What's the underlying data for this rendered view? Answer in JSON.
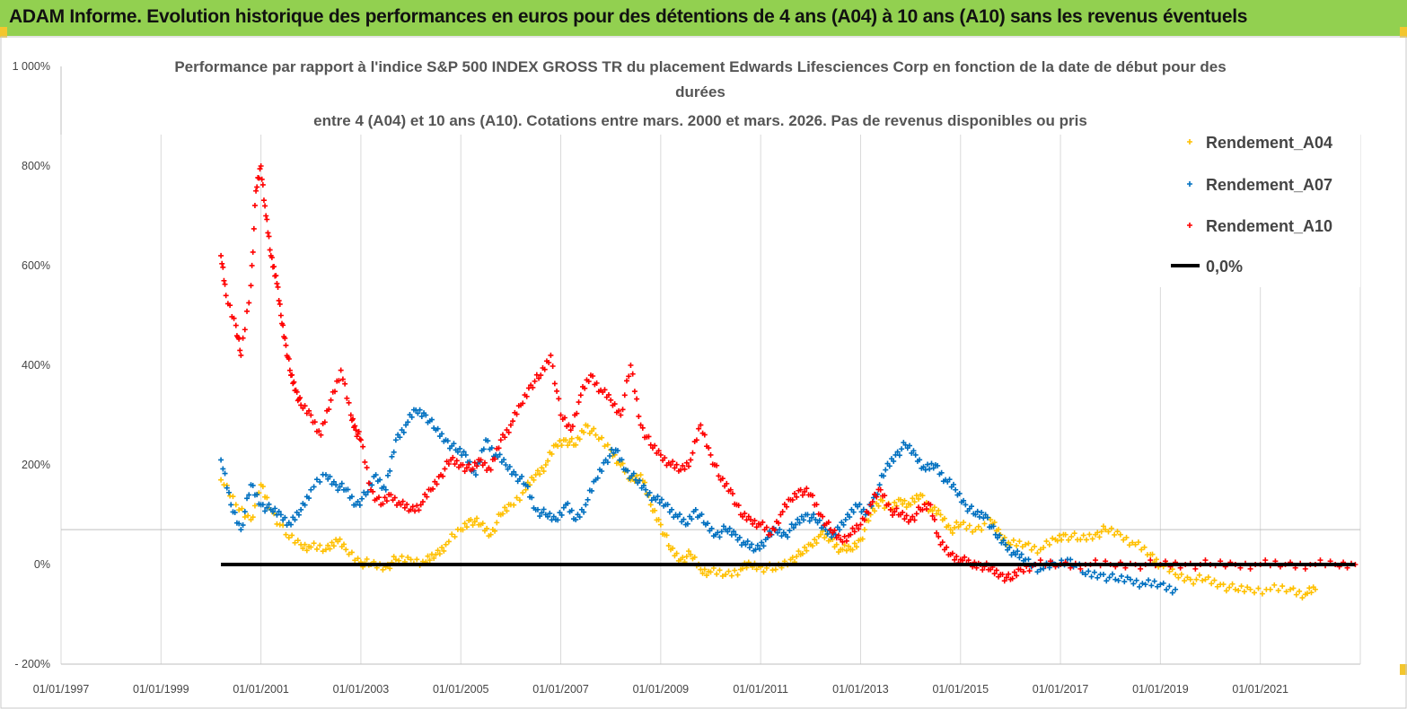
{
  "header": {
    "title": "ADAM Informe. Evolution historique des performances en euros pour des détentions de 4 ans (A04) à 10 ans (A10) sans les revenus éventuels"
  },
  "colors": {
    "banner": "#92d050",
    "A04": "#ffc000",
    "A07": "#0070c0",
    "A10": "#ff0000",
    "zero": "#000000"
  },
  "chart_data": {
    "type": "scatter",
    "title_lines": [
      "Performance par rapport à l'indice S&P 500 INDEX GROSS TR  du placement Edwards Lifesciences  Corp en fonction de la date de début pour des",
      "durées",
      "entre 4 (A04) et 10 ans (A10).  Cotations entre mars. 2000 et mars. 2026. Pas de revenus disponibles ou pris"
    ],
    "xlabel": "",
    "ylabel": "",
    "x_range": [
      1997.0,
      2023.0
    ],
    "ylim": [
      -200,
      1000
    ],
    "y_ticks": [
      -200,
      0,
      200,
      400,
      600,
      800,
      1000
    ],
    "y_tick_labels": [
      "- 200%",
      "0%",
      "200%",
      "400%",
      "600%",
      "800%",
      "1 000%"
    ],
    "x_ticks": [
      1997,
      1999,
      2001,
      2003,
      2005,
      2007,
      2009,
      2011,
      2013,
      2015,
      2017,
      2019,
      2021
    ],
    "x_tick_labels": [
      "01/01/1997",
      "01/01/1999",
      "01/01/2001",
      "01/01/2003",
      "01/01/2005",
      "01/01/2007",
      "01/01/2009",
      "01/01/2011",
      "01/01/2013",
      "01/01/2015",
      "01/01/2017",
      "01/01/2019",
      "01/01/2021"
    ],
    "reference_line_y": 70,
    "series": [
      {
        "name": "Rendement_A04",
        "key": "A04",
        "points": [
          [
            2000.2,
            170
          ],
          [
            2000.5,
            120
          ],
          [
            2000.8,
            90
          ],
          [
            2001.0,
            160
          ],
          [
            2001.2,
            110
          ],
          [
            2001.5,
            60
          ],
          [
            2001.8,
            40
          ],
          [
            2002.0,
            35
          ],
          [
            2002.3,
            30
          ],
          [
            2002.5,
            50
          ],
          [
            2002.7,
            30
          ],
          [
            2003.0,
            5
          ],
          [
            2003.2,
            0
          ],
          [
            2003.5,
            -5
          ],
          [
            2003.7,
            10
          ],
          [
            2004.0,
            10
          ],
          [
            2004.3,
            5
          ],
          [
            2004.5,
            20
          ],
          [
            2004.7,
            40
          ],
          [
            2005.0,
            70
          ],
          [
            2005.2,
            90
          ],
          [
            2005.4,
            80
          ],
          [
            2005.6,
            60
          ],
          [
            2005.8,
            100
          ],
          [
            2006.0,
            120
          ],
          [
            2006.3,
            150
          ],
          [
            2006.5,
            180
          ],
          [
            2006.7,
            200
          ],
          [
            2006.9,
            240
          ],
          [
            2007.1,
            250
          ],
          [
            2007.3,
            240
          ],
          [
            2007.5,
            280
          ],
          [
            2007.7,
            260
          ],
          [
            2008.0,
            230
          ],
          [
            2008.2,
            200
          ],
          [
            2008.4,
            170
          ],
          [
            2008.6,
            180
          ],
          [
            2008.8,
            120
          ],
          [
            2009.0,
            80
          ],
          [
            2009.2,
            30
          ],
          [
            2009.4,
            10
          ],
          [
            2009.6,
            20
          ],
          [
            2009.8,
            -10
          ],
          [
            2010.0,
            -15
          ],
          [
            2010.3,
            -20
          ],
          [
            2010.6,
            -10
          ],
          [
            2010.8,
            0
          ],
          [
            2011.0,
            -5
          ],
          [
            2011.3,
            -10
          ],
          [
            2011.6,
            10
          ],
          [
            2011.8,
            20
          ],
          [
            2012.0,
            40
          ],
          [
            2012.2,
            60
          ],
          [
            2012.4,
            50
          ],
          [
            2012.6,
            30
          ],
          [
            2012.8,
            30
          ],
          [
            2013.0,
            50
          ],
          [
            2013.2,
            100
          ],
          [
            2013.4,
            130
          ],
          [
            2013.6,
            110
          ],
          [
            2013.8,
            130
          ],
          [
            2014.0,
            120
          ],
          [
            2014.2,
            140
          ],
          [
            2014.4,
            110
          ],
          [
            2014.6,
            100
          ],
          [
            2014.8,
            70
          ],
          [
            2015.0,
            80
          ],
          [
            2015.3,
            70
          ],
          [
            2015.6,
            90
          ],
          [
            2015.8,
            60
          ],
          [
            2016.0,
            40
          ],
          [
            2016.3,
            40
          ],
          [
            2016.6,
            30
          ],
          [
            2016.9,
            50
          ],
          [
            2017.1,
            60
          ],
          [
            2017.4,
            50
          ],
          [
            2017.7,
            60
          ],
          [
            2017.9,
            70
          ],
          [
            2018.2,
            60
          ],
          [
            2018.5,
            40
          ],
          [
            2018.8,
            20
          ],
          [
            2019.0,
            0
          ],
          [
            2019.3,
            -20
          ],
          [
            2019.6,
            -30
          ],
          [
            2019.9,
            -30
          ],
          [
            2020.2,
            -40
          ],
          [
            2020.5,
            -50
          ],
          [
            2020.8,
            -50
          ],
          [
            2021.2,
            -50
          ],
          [
            2021.6,
            -50
          ],
          [
            2021.9,
            -60
          ],
          [
            2022.1,
            -50
          ]
        ]
      },
      {
        "name": "Rendement_A07",
        "key": "A07",
        "points": [
          [
            2000.2,
            210
          ],
          [
            2000.4,
            120
          ],
          [
            2000.6,
            70
          ],
          [
            2000.8,
            160
          ],
          [
            2001.0,
            120
          ],
          [
            2001.2,
            110
          ],
          [
            2001.4,
            100
          ],
          [
            2001.6,
            80
          ],
          [
            2001.8,
            110
          ],
          [
            2002.0,
            150
          ],
          [
            2002.3,
            180
          ],
          [
            2002.5,
            160
          ],
          [
            2002.7,
            150
          ],
          [
            2002.9,
            120
          ],
          [
            2003.1,
            140
          ],
          [
            2003.3,
            180
          ],
          [
            2003.5,
            150
          ],
          [
            2003.7,
            250
          ],
          [
            2003.9,
            280
          ],
          [
            2004.1,
            310
          ],
          [
            2004.3,
            300
          ],
          [
            2004.5,
            270
          ],
          [
            2004.7,
            250
          ],
          [
            2004.9,
            230
          ],
          [
            2005.1,
            220
          ],
          [
            2005.3,
            180
          ],
          [
            2005.5,
            250
          ],
          [
            2005.7,
            220
          ],
          [
            2005.9,
            200
          ],
          [
            2006.1,
            180
          ],
          [
            2006.3,
            160
          ],
          [
            2006.5,
            110
          ],
          [
            2006.7,
            100
          ],
          [
            2006.9,
            90
          ],
          [
            2007.1,
            120
          ],
          [
            2007.3,
            90
          ],
          [
            2007.5,
            120
          ],
          [
            2007.7,
            170
          ],
          [
            2007.9,
            210
          ],
          [
            2008.1,
            230
          ],
          [
            2008.3,
            190
          ],
          [
            2008.5,
            170
          ],
          [
            2008.7,
            150
          ],
          [
            2008.9,
            130
          ],
          [
            2009.1,
            120
          ],
          [
            2009.3,
            100
          ],
          [
            2009.5,
            80
          ],
          [
            2009.7,
            110
          ],
          [
            2009.9,
            80
          ],
          [
            2010.1,
            60
          ],
          [
            2010.3,
            70
          ],
          [
            2010.5,
            60
          ],
          [
            2010.7,
            40
          ],
          [
            2010.9,
            30
          ],
          [
            2011.1,
            50
          ],
          [
            2011.3,
            70
          ],
          [
            2011.5,
            60
          ],
          [
            2011.7,
            80
          ],
          [
            2011.9,
            100
          ],
          [
            2012.1,
            90
          ],
          [
            2012.3,
            70
          ],
          [
            2012.5,
            60
          ],
          [
            2012.7,
            90
          ],
          [
            2012.9,
            120
          ],
          [
            2013.1,
            100
          ],
          [
            2013.3,
            140
          ],
          [
            2013.5,
            190
          ],
          [
            2013.7,
            220
          ],
          [
            2013.9,
            240
          ],
          [
            2014.1,
            220
          ],
          [
            2014.3,
            190
          ],
          [
            2014.5,
            200
          ],
          [
            2014.7,
            170
          ],
          [
            2014.9,
            150
          ],
          [
            2015.1,
            120
          ],
          [
            2015.3,
            100
          ],
          [
            2015.5,
            100
          ],
          [
            2015.7,
            60
          ],
          [
            2015.9,
            40
          ],
          [
            2016.1,
            20
          ],
          [
            2016.3,
            10
          ],
          [
            2016.6,
            -10
          ],
          [
            2016.9,
            0
          ],
          [
            2017.2,
            10
          ],
          [
            2017.5,
            -20
          ],
          [
            2017.8,
            -20
          ],
          [
            2018.1,
            -30
          ],
          [
            2018.4,
            -30
          ],
          [
            2018.7,
            -40
          ],
          [
            2019.0,
            -40
          ],
          [
            2019.3,
            -50
          ]
        ]
      },
      {
        "name": "Rendement_A10",
        "key": "A10",
        "points": [
          [
            2000.2,
            620
          ],
          [
            2000.3,
            540
          ],
          [
            2000.5,
            480
          ],
          [
            2000.6,
            420
          ],
          [
            2000.8,
            560
          ],
          [
            2000.9,
            750
          ],
          [
            2001.0,
            800
          ],
          [
            2001.1,
            700
          ],
          [
            2001.2,
            620
          ],
          [
            2001.3,
            580
          ],
          [
            2001.4,
            500
          ],
          [
            2001.5,
            440
          ],
          [
            2001.6,
            380
          ],
          [
            2001.7,
            350
          ],
          [
            2001.8,
            320
          ],
          [
            2002.0,
            300
          ],
          [
            2002.2,
            260
          ],
          [
            2002.4,
            330
          ],
          [
            2002.6,
            390
          ],
          [
            2002.8,
            300
          ],
          [
            2002.9,
            270
          ],
          [
            2003.0,
            250
          ],
          [
            2003.2,
            150
          ],
          [
            2003.4,
            120
          ],
          [
            2003.6,
            140
          ],
          [
            2003.8,
            120
          ],
          [
            2004.0,
            110
          ],
          [
            2004.2,
            120
          ],
          [
            2004.4,
            150
          ],
          [
            2004.6,
            180
          ],
          [
            2004.8,
            210
          ],
          [
            2005.0,
            200
          ],
          [
            2005.2,
            190
          ],
          [
            2005.4,
            210
          ],
          [
            2005.6,
            190
          ],
          [
            2005.8,
            250
          ],
          [
            2006.0,
            280
          ],
          [
            2006.2,
            320
          ],
          [
            2006.4,
            360
          ],
          [
            2006.6,
            380
          ],
          [
            2006.8,
            420
          ],
          [
            2007.0,
            300
          ],
          [
            2007.2,
            270
          ],
          [
            2007.4,
            340
          ],
          [
            2007.6,
            380
          ],
          [
            2007.8,
            350
          ],
          [
            2008.0,
            330
          ],
          [
            2008.2,
            300
          ],
          [
            2008.4,
            400
          ],
          [
            2008.6,
            280
          ],
          [
            2008.8,
            240
          ],
          [
            2009.0,
            220
          ],
          [
            2009.2,
            200
          ],
          [
            2009.4,
            190
          ],
          [
            2009.6,
            210
          ],
          [
            2009.8,
            280
          ],
          [
            2010.0,
            220
          ],
          [
            2010.2,
            170
          ],
          [
            2010.4,
            150
          ],
          [
            2010.6,
            100
          ],
          [
            2010.8,
            90
          ],
          [
            2011.0,
            80
          ],
          [
            2011.2,
            60
          ],
          [
            2011.4,
            100
          ],
          [
            2011.6,
            130
          ],
          [
            2011.8,
            150
          ],
          [
            2012.0,
            140
          ],
          [
            2012.2,
            100
          ],
          [
            2012.4,
            70
          ],
          [
            2012.6,
            50
          ],
          [
            2012.8,
            60
          ],
          [
            2013.0,
            80
          ],
          [
            2013.2,
            120
          ],
          [
            2013.4,
            150
          ],
          [
            2013.6,
            110
          ],
          [
            2013.8,
            100
          ],
          [
            2014.0,
            90
          ],
          [
            2014.2,
            110
          ],
          [
            2014.4,
            120
          ],
          [
            2014.6,
            40
          ],
          [
            2014.8,
            20
          ],
          [
            2015.0,
            10
          ],
          [
            2015.2,
            0
          ],
          [
            2015.4,
            0
          ],
          [
            2015.6,
            -10
          ],
          [
            2015.8,
            -20
          ],
          [
            2016.0,
            -30
          ],
          [
            2016.2,
            -10
          ],
          [
            2016.5,
            0
          ],
          [
            2017.0,
            0
          ],
          [
            2017.5,
            0
          ],
          [
            2018.0,
            0
          ],
          [
            2018.5,
            0
          ],
          [
            2019.0,
            0
          ],
          [
            2019.5,
            0
          ],
          [
            2020.0,
            0
          ],
          [
            2020.5,
            0
          ],
          [
            2021.0,
            0
          ],
          [
            2021.5,
            0
          ],
          [
            2022.0,
            0
          ],
          [
            2022.5,
            0
          ],
          [
            2022.9,
            0
          ]
        ]
      },
      {
        "name": "0,0%",
        "key": "zero",
        "points": [
          [
            2000.2,
            0
          ],
          [
            2022.9,
            0
          ]
        ]
      }
    ],
    "legend": {
      "position": "right",
      "entries": [
        "Rendement_A04",
        "Rendement_A07",
        "Rendement_A10",
        "0,0%"
      ]
    }
  }
}
